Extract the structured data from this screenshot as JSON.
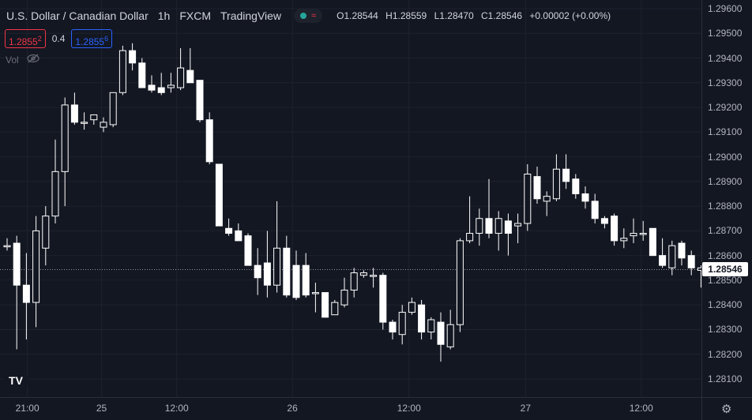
{
  "header": {
    "symbol": "U.S. Dollar / Canadian Dollar",
    "interval": "1h",
    "exchange": "FXCM",
    "source": "TradingView",
    "ohlc": {
      "open_label": "O",
      "open": "1.28544",
      "high_label": "H",
      "high": "1.28559",
      "low_label": "L",
      "low": "1.28470",
      "close_label": "C",
      "close": "1.28546",
      "change": "+0.00002 (+0.00%)"
    }
  },
  "quotes": {
    "sell_main": "1.2855",
    "sell_pip": "2",
    "spread": "0.4",
    "buy_main": "1.2855",
    "buy_pip": "6"
  },
  "volume": {
    "label": "Vol"
  },
  "last_price": "1.28546",
  "logo_text": "TV",
  "icons": {
    "visibility": "eye-off-icon",
    "settings": "gear-icon"
  },
  "colors": {
    "background": "#131722",
    "candle": "#ffffff",
    "sell": "#f23645",
    "buy": "#2962ff"
  },
  "chart_data": {
    "type": "candlestick",
    "ylim": [
      1.2805,
      1.2963
    ],
    "y_ticks": [
      "1.29600",
      "1.29500",
      "1.29400",
      "1.29300",
      "1.29200",
      "1.29100",
      "1.29000",
      "1.28900",
      "1.28800",
      "1.28700",
      "1.28600",
      "1.28500",
      "1.28400",
      "1.28300",
      "1.28200",
      "1.28100"
    ],
    "x_ticks": [
      "21:00",
      "25",
      "12:00",
      "26",
      "12:00",
      "27",
      "12:00"
    ],
    "x_tick_index": [
      2.1,
      9.8,
      17.6,
      29.6,
      41.7,
      53.8,
      65.8
    ],
    "candles": [
      {
        "o": 1.2864,
        "h": 1.2867,
        "l": 1.2862,
        "c": 1.2864
      },
      {
        "o": 1.2865,
        "h": 1.2868,
        "l": 1.2822,
        "c": 1.2848
      },
      {
        "o": 1.2848,
        "h": 1.2861,
        "l": 1.2826,
        "c": 1.2841
      },
      {
        "o": 1.2841,
        "h": 1.2876,
        "l": 1.2831,
        "c": 1.287
      },
      {
        "o": 1.2863,
        "h": 1.288,
        "l": 1.2856,
        "c": 1.2876
      },
      {
        "o": 1.2876,
        "h": 1.2907,
        "l": 1.2873,
        "c": 1.2894
      },
      {
        "o": 1.2894,
        "h": 1.2924,
        "l": 1.288,
        "c": 1.2921
      },
      {
        "o": 1.2921,
        "h": 1.2926,
        "l": 1.2913,
        "c": 1.2914
      },
      {
        "o": 1.2914,
        "h": 1.2918,
        "l": 1.2911,
        "c": 1.2914
      },
      {
        "o": 1.2915,
        "h": 1.2916,
        "l": 1.2913,
        "c": 1.2917
      },
      {
        "o": 1.2912,
        "h": 1.2916,
        "l": 1.291,
        "c": 1.2914
      },
      {
        "o": 1.2913,
        "h": 1.2925,
        "l": 1.2912,
        "c": 1.2926
      },
      {
        "o": 1.2926,
        "h": 1.2945,
        "l": 1.2925,
        "c": 1.2943
      },
      {
        "o": 1.2943,
        "h": 1.2946,
        "l": 1.2935,
        "c": 1.2938
      },
      {
        "o": 1.2938,
        "h": 1.294,
        "l": 1.2928,
        "c": 1.2928
      },
      {
        "o": 1.2929,
        "h": 1.2933,
        "l": 1.2926,
        "c": 1.2927
      },
      {
        "o": 1.2928,
        "h": 1.2934,
        "l": 1.2925,
        "c": 1.2926
      },
      {
        "o": 1.2928,
        "h": 1.2934,
        "l": 1.2926,
        "c": 1.2929
      },
      {
        "o": 1.2928,
        "h": 1.2944,
        "l": 1.2927,
        "c": 1.2936
      },
      {
        "o": 1.2935,
        "h": 1.2944,
        "l": 1.293,
        "c": 1.293
      },
      {
        "o": 1.2931,
        "h": 1.2931,
        "l": 1.2914,
        "c": 1.2915
      },
      {
        "o": 1.2915,
        "h": 1.2918,
        "l": 1.2897,
        "c": 1.2898
      },
      {
        "o": 1.2897,
        "h": 1.2897,
        "l": 1.2872,
        "c": 1.2872
      },
      {
        "o": 1.2871,
        "h": 1.2875,
        "l": 1.2868,
        "c": 1.2869
      },
      {
        "o": 1.287,
        "h": 1.2873,
        "l": 1.2867,
        "c": 1.2866
      },
      {
        "o": 1.2868,
        "h": 1.2869,
        "l": 1.2856,
        "c": 1.2856
      },
      {
        "o": 1.2856,
        "h": 1.2863,
        "l": 1.2844,
        "c": 1.2851
      },
      {
        "o": 1.2857,
        "h": 1.287,
        "l": 1.2843,
        "c": 1.2848
      },
      {
        "o": 1.2848,
        "h": 1.2882,
        "l": 1.2845,
        "c": 1.2863
      },
      {
        "o": 1.2863,
        "h": 1.2868,
        "l": 1.2843,
        "c": 1.2844
      },
      {
        "o": 1.2856,
        "h": 1.2862,
        "l": 1.2842,
        "c": 1.2843
      },
      {
        "o": 1.2856,
        "h": 1.2861,
        "l": 1.2843,
        "c": 1.2844
      },
      {
        "o": 1.2845,
        "h": 1.2849,
        "l": 1.2837,
        "c": 1.2845
      },
      {
        "o": 1.2845,
        "h": 1.2845,
        "l": 1.2835,
        "c": 1.2835
      },
      {
        "o": 1.2836,
        "h": 1.2842,
        "l": 1.2836,
        "c": 1.2841
      },
      {
        "o": 1.284,
        "h": 1.2851,
        "l": 1.2839,
        "c": 1.2846
      },
      {
        "o": 1.2846,
        "h": 1.2855,
        "l": 1.2843,
        "c": 1.2853
      },
      {
        "o": 1.2852,
        "h": 1.2854,
        "l": 1.2851,
        "c": 1.2853
      },
      {
        "o": 1.2852,
        "h": 1.2855,
        "l": 1.2847,
        "c": 1.2852
      },
      {
        "o": 1.2852,
        "h": 1.2853,
        "l": 1.283,
        "c": 1.2833
      },
      {
        "o": 1.2833,
        "h": 1.2834,
        "l": 1.2826,
        "c": 1.2829
      },
      {
        "o": 1.2828,
        "h": 1.284,
        "l": 1.2824,
        "c": 1.2837
      },
      {
        "o": 1.2837,
        "h": 1.2843,
        "l": 1.2836,
        "c": 1.2841
      },
      {
        "o": 1.284,
        "h": 1.2842,
        "l": 1.2826,
        "c": 1.2829
      },
      {
        "o": 1.2829,
        "h": 1.2835,
        "l": 1.2826,
        "c": 1.2834
      },
      {
        "o": 1.2833,
        "h": 1.2837,
        "l": 1.2817,
        "c": 1.2824
      },
      {
        "o": 1.2823,
        "h": 1.2838,
        "l": 1.2822,
        "c": 1.2832
      },
      {
        "o": 1.2832,
        "h": 1.2867,
        "l": 1.2829,
        "c": 1.2866
      },
      {
        "o": 1.2866,
        "h": 1.2884,
        "l": 1.2865,
        "c": 1.2869
      },
      {
        "o": 1.2869,
        "h": 1.2879,
        "l": 1.2864,
        "c": 1.2875
      },
      {
        "o": 1.2875,
        "h": 1.2891,
        "l": 1.2867,
        "c": 1.2869
      },
      {
        "o": 1.2869,
        "h": 1.2878,
        "l": 1.2862,
        "c": 1.2875
      },
      {
        "o": 1.2874,
        "h": 1.2877,
        "l": 1.286,
        "c": 1.2869
      },
      {
        "o": 1.2872,
        "h": 1.2877,
        "l": 1.2865,
        "c": 1.2873
      },
      {
        "o": 1.2873,
        "h": 1.2897,
        "l": 1.287,
        "c": 1.2893
      },
      {
        "o": 1.2892,
        "h": 1.2896,
        "l": 1.2881,
        "c": 1.2883
      },
      {
        "o": 1.2882,
        "h": 1.2886,
        "l": 1.2876,
        "c": 1.2884
      },
      {
        "o": 1.2883,
        "h": 1.2901,
        "l": 1.2882,
        "c": 1.2895
      },
      {
        "o": 1.2895,
        "h": 1.2901,
        "l": 1.2887,
        "c": 1.289
      },
      {
        "o": 1.2891,
        "h": 1.2893,
        "l": 1.2883,
        "c": 1.2885
      },
      {
        "o": 1.2885,
        "h": 1.2888,
        "l": 1.2879,
        "c": 1.2882
      },
      {
        "o": 1.2882,
        "h": 1.2885,
        "l": 1.2873,
        "c": 1.2875
      },
      {
        "o": 1.2875,
        "h": 1.2876,
        "l": 1.2871,
        "c": 1.2873
      },
      {
        "o": 1.2876,
        "h": 1.2877,
        "l": 1.2864,
        "c": 1.2866
      },
      {
        "o": 1.2866,
        "h": 1.2871,
        "l": 1.2863,
        "c": 1.2867
      },
      {
        "o": 1.2868,
        "h": 1.2875,
        "l": 1.2865,
        "c": 1.2869
      },
      {
        "o": 1.2869,
        "h": 1.2874,
        "l": 1.2866,
        "c": 1.2869
      },
      {
        "o": 1.2871,
        "h": 1.2871,
        "l": 1.286,
        "c": 1.286
      },
      {
        "o": 1.286,
        "h": 1.2867,
        "l": 1.2855,
        "c": 1.2856
      },
      {
        "o": 1.2855,
        "h": 1.2866,
        "l": 1.2852,
        "c": 1.2864
      },
      {
        "o": 1.2865,
        "h": 1.2866,
        "l": 1.2856,
        "c": 1.2859
      },
      {
        "o": 1.286,
        "h": 1.2862,
        "l": 1.2852,
        "c": 1.2855
      },
      {
        "o": 1.2854,
        "h": 1.2856,
        "l": 1.2847,
        "c": 1.2855
      }
    ]
  }
}
